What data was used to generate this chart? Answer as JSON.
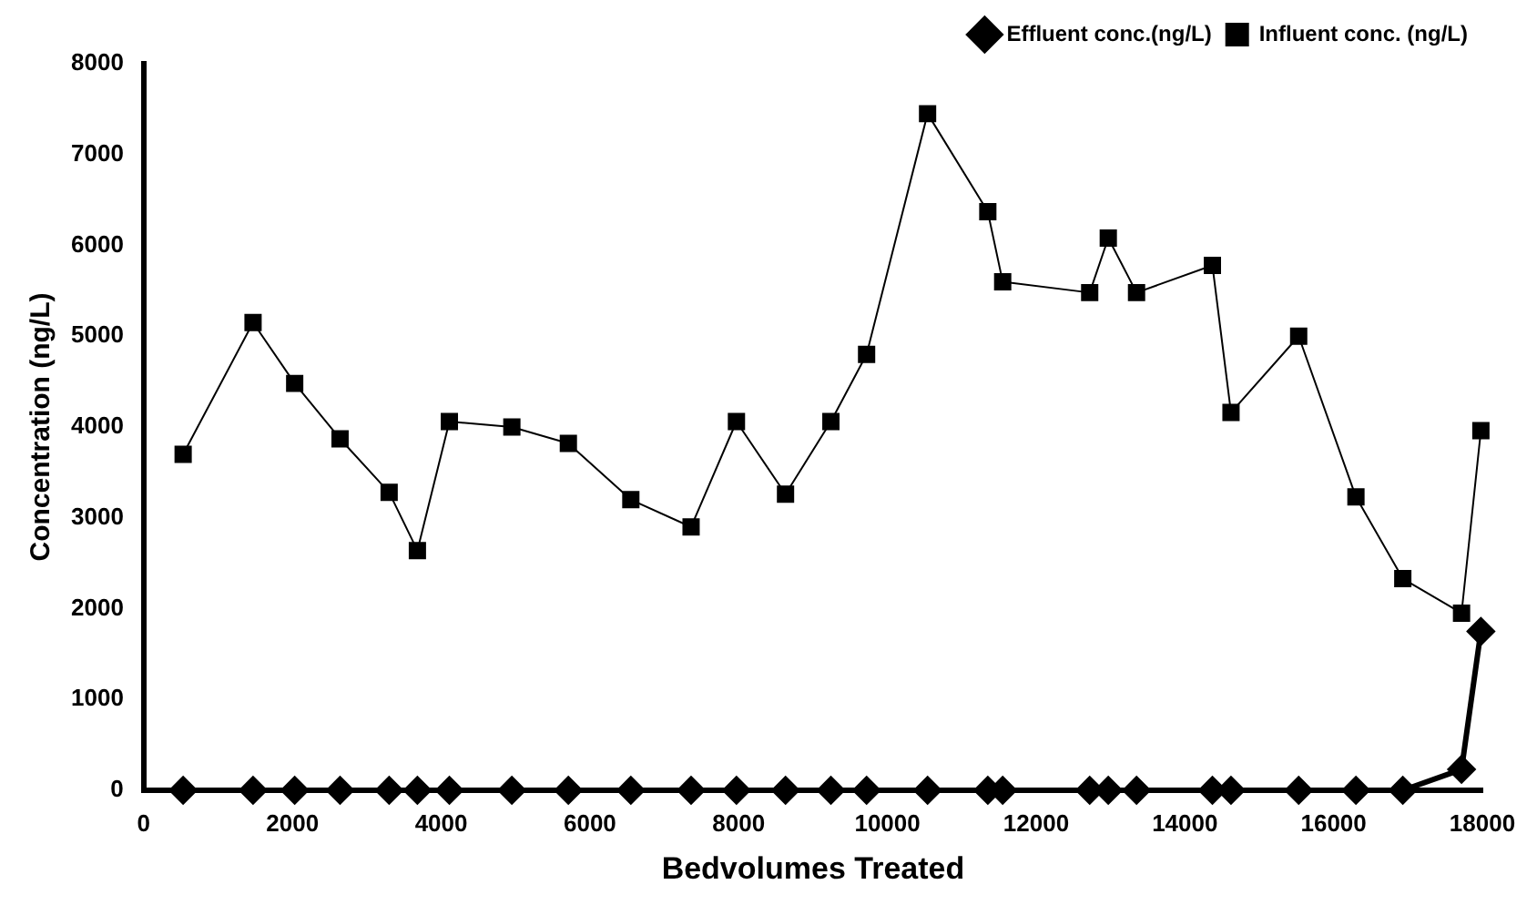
{
  "chart_data": {
    "type": "line",
    "xlabel": "Bedvolumes Treated",
    "ylabel": "Concentration (ng/L)",
    "xlim": [
      0,
      18000
    ],
    "xticks": [
      0,
      2000,
      4000,
      6000,
      8000,
      10000,
      12000,
      14000,
      16000,
      18000
    ],
    "ylim": [
      0,
      8000
    ],
    "yticks": [
      0,
      1000,
      2000,
      3000,
      4000,
      5000,
      6000,
      7000,
      8000
    ],
    "grid": false,
    "legend": "top right",
    "series": [
      {
        "name": "Effluent conc.(ng/L)",
        "color": "#000000",
        "marker": "diamond",
        "x": [
          530,
          1470,
          2030,
          2640,
          3300,
          3680,
          4110,
          4950,
          5710,
          6550,
          7360,
          7970,
          8630,
          9240,
          9720,
          10540,
          11350,
          11550,
          12720,
          12970,
          13350,
          14370,
          14620,
          15530,
          16300,
          16930,
          17720,
          17980
        ],
        "values": [
          0,
          0,
          0,
          0,
          0,
          0,
          0,
          0,
          0,
          0,
          0,
          0,
          0,
          0,
          0,
          0,
          0,
          0,
          0,
          0,
          0,
          0,
          0,
          0,
          0,
          0,
          230,
          1750
        ]
      },
      {
        "name": "Influent conc. (ng/L)",
        "color": "#000000",
        "marker": "square",
        "x": [
          530,
          1470,
          2030,
          2640,
          3300,
          3680,
          4110,
          4950,
          5710,
          6550,
          7360,
          7970,
          8630,
          9240,
          9720,
          10540,
          11350,
          11550,
          12720,
          12970,
          13350,
          14370,
          14620,
          15530,
          16300,
          16930,
          17720,
          17980
        ],
        "values": [
          3700,
          5150,
          4480,
          3870,
          3280,
          2640,
          4060,
          4000,
          3820,
          3200,
          2900,
          4060,
          3260,
          4060,
          4800,
          7450,
          6370,
          5600,
          5480,
          6080,
          5480,
          5780,
          4160,
          5000,
          3230,
          2330,
          1950,
          3960
        ]
      }
    ]
  }
}
